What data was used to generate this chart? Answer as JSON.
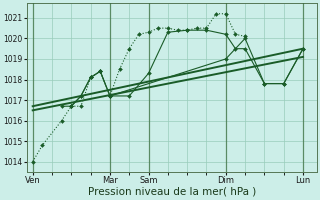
{
  "bg_color": "#cceee8",
  "grid_color": "#99ccbb",
  "line_color": "#1a5c28",
  "xlabel": "Pression niveau de la mer( hPa )",
  "xlabel_fontsize": 7.5,
  "ylim": [
    1013.5,
    1021.7
  ],
  "yticks": [
    1014,
    1015,
    1016,
    1017,
    1018,
    1019,
    1020,
    1021
  ],
  "ytick_fontsize": 5.5,
  "xtick_labels": [
    "Ven",
    "Mar",
    "Sam",
    "Dim",
    "Lun"
  ],
  "xtick_positions": [
    0,
    4,
    6,
    10,
    14
  ],
  "xlim": [
    -0.3,
    14.7
  ],
  "vlines": [
    0,
    4,
    6,
    10,
    14
  ],
  "series": [
    {
      "x": [
        0,
        0.5,
        1.5,
        2,
        2.5,
        3,
        3.5,
        4,
        4.5,
        5,
        5.5,
        6,
        6.5,
        7,
        7.5,
        8,
        8.5,
        9,
        9.5,
        10,
        10.5,
        11
      ],
      "y": [
        1014.0,
        1014.8,
        1016.0,
        1016.7,
        1016.7,
        1018.1,
        1018.4,
        1017.2,
        1018.5,
        1019.5,
        1020.2,
        1020.3,
        1020.5,
        1020.5,
        1020.4,
        1020.4,
        1020.5,
        1020.5,
        1021.2,
        1021.2,
        1020.2,
        1020.1
      ],
      "marker": "D",
      "markersize": 2.0,
      "linewidth": 0.8,
      "linestyle": ":"
    },
    {
      "x": [
        2,
        2.5,
        3,
        3.5,
        4,
        5,
        6,
        7,
        8,
        9,
        10,
        10.5,
        11,
        12,
        13,
        14
      ],
      "y": [
        1016.7,
        1017.2,
        1018.1,
        1018.4,
        1017.2,
        1017.2,
        1018.3,
        1020.3,
        1020.4,
        1020.4,
        1020.2,
        1019.5,
        1019.5,
        1017.8,
        1017.8,
        1019.5
      ],
      "marker": "D",
      "markersize": 2.0,
      "linewidth": 0.8,
      "linestyle": "-"
    },
    {
      "x": [
        0,
        14
      ],
      "y": [
        1016.7,
        1019.5
      ],
      "marker": null,
      "markersize": 0,
      "linewidth": 1.4,
      "linestyle": "-"
    },
    {
      "x": [
        0,
        14
      ],
      "y": [
        1016.5,
        1019.1
      ],
      "marker": null,
      "markersize": 0,
      "linewidth": 1.4,
      "linestyle": "-"
    },
    {
      "x": [
        1.5,
        2,
        2.5,
        3,
        3.5,
        4,
        10,
        11,
        12,
        13,
        14
      ],
      "y": [
        1016.7,
        1016.7,
        1017.2,
        1018.1,
        1018.4,
        1017.2,
        1019.0,
        1020.0,
        1017.8,
        1017.8,
        1019.5
      ],
      "marker": "D",
      "markersize": 2.0,
      "linewidth": 0.8,
      "linestyle": "-"
    }
  ]
}
